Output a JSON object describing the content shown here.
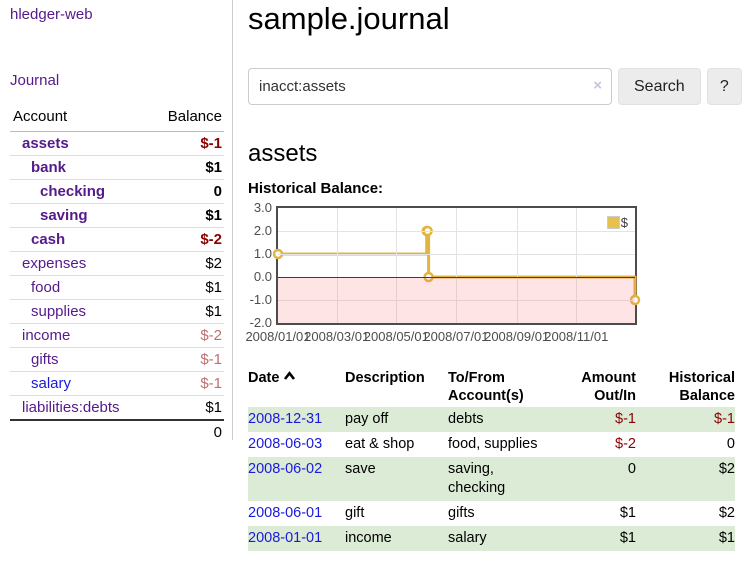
{
  "app": {
    "title": "hledger-web"
  },
  "sidebar": {
    "journal_link": "Journal",
    "table": {
      "account_header": "Account",
      "balance_header": "Balance",
      "rows": [
        {
          "name": "assets",
          "balance": "$-1",
          "depth": 1,
          "bold": true
        },
        {
          "name": "bank",
          "balance": "$1",
          "depth": 2,
          "bold": true
        },
        {
          "name": "checking",
          "balance": "0",
          "depth": 3,
          "bold": true
        },
        {
          "name": "saving",
          "balance": "$1",
          "depth": 3,
          "bold": true
        },
        {
          "name": "cash",
          "balance": "$-2",
          "depth": 2,
          "bold": true
        },
        {
          "name": "expenses",
          "balance": "$2",
          "depth": 1,
          "bold": false
        },
        {
          "name": "food",
          "balance": "$1",
          "depth": 2,
          "bold": false
        },
        {
          "name": "supplies",
          "balance": "$1",
          "depth": 2,
          "bold": false
        },
        {
          "name": "income",
          "balance": "$-2",
          "depth": 1,
          "bold": false
        },
        {
          "name": "gifts",
          "balance": "$-1",
          "depth": 2,
          "bold": false
        },
        {
          "name": "salary",
          "balance": "$-1",
          "depth": 2,
          "bold": false
        },
        {
          "name": "liabilities:debts",
          "balance": "$1",
          "depth": 1,
          "bold": false
        }
      ],
      "total": "0"
    }
  },
  "header": {
    "title": "sample.journal"
  },
  "search": {
    "value": "inacct:assets",
    "clear_icon": "×",
    "button_label": "Search",
    "help_label": "?"
  },
  "account_page": {
    "title": "assets",
    "chart_label": "Historical Balance:"
  },
  "chart_data": {
    "type": "line",
    "steps": true,
    "title": "Historical Balance",
    "series": [
      {
        "name": "$",
        "color": "#e2b540",
        "points": [
          [
            "2008-01-01",
            1
          ],
          [
            "2008-06-01",
            2
          ],
          [
            "2008-06-02",
            2
          ],
          [
            "2008-06-03",
            0
          ],
          [
            "2008-12-31",
            -1
          ]
        ]
      }
    ],
    "x_ticks": [
      "2008/01/01",
      "2008/03/01",
      "2008/05/01",
      "2008/07/01",
      "2008/09/01",
      "2008/11/01"
    ],
    "y_ticks": [
      3.0,
      2.0,
      1.0,
      0.0,
      -1.0,
      -2.0
    ],
    "ylim": [
      -2,
      3
    ],
    "xlim": [
      "2008-01-01",
      "2008-12-31"
    ],
    "grid": true,
    "legend_position": "top-right",
    "negative_region_color": "rgba(250,105,105,0.18)",
    "zero_line_color": "#8b1a1a"
  },
  "transactions": {
    "headers": {
      "date": "Date",
      "description": "Description",
      "accounts": "To/From Account(s)",
      "amount": "Amount Out/In",
      "balance": "Historical Balance"
    },
    "rows": [
      {
        "date": "2008-12-31",
        "description": "pay off",
        "accounts": "debts",
        "amount": "$-1",
        "balance": "$-1"
      },
      {
        "date": "2008-06-03",
        "description": "eat & shop",
        "accounts": "food, supplies",
        "amount": "$-2",
        "balance": "0"
      },
      {
        "date": "2008-06-02",
        "description": "save",
        "accounts": "saving, checking",
        "amount": "0",
        "balance": "$2"
      },
      {
        "date": "2008-06-01",
        "description": "gift",
        "accounts": "gifts",
        "amount": "$1",
        "balance": "$2"
      },
      {
        "date": "2008-01-01",
        "description": "income",
        "accounts": "salary",
        "amount": "$1",
        "balance": "$1"
      }
    ]
  },
  "colors": {
    "link_purple": "#551a8b",
    "link_blue": "#1a1add",
    "negative_strong": "#8b0000",
    "negative_soft": "#bf6f6f",
    "row_green": "#dcebd5",
    "chart_line": "#e2b540"
  }
}
